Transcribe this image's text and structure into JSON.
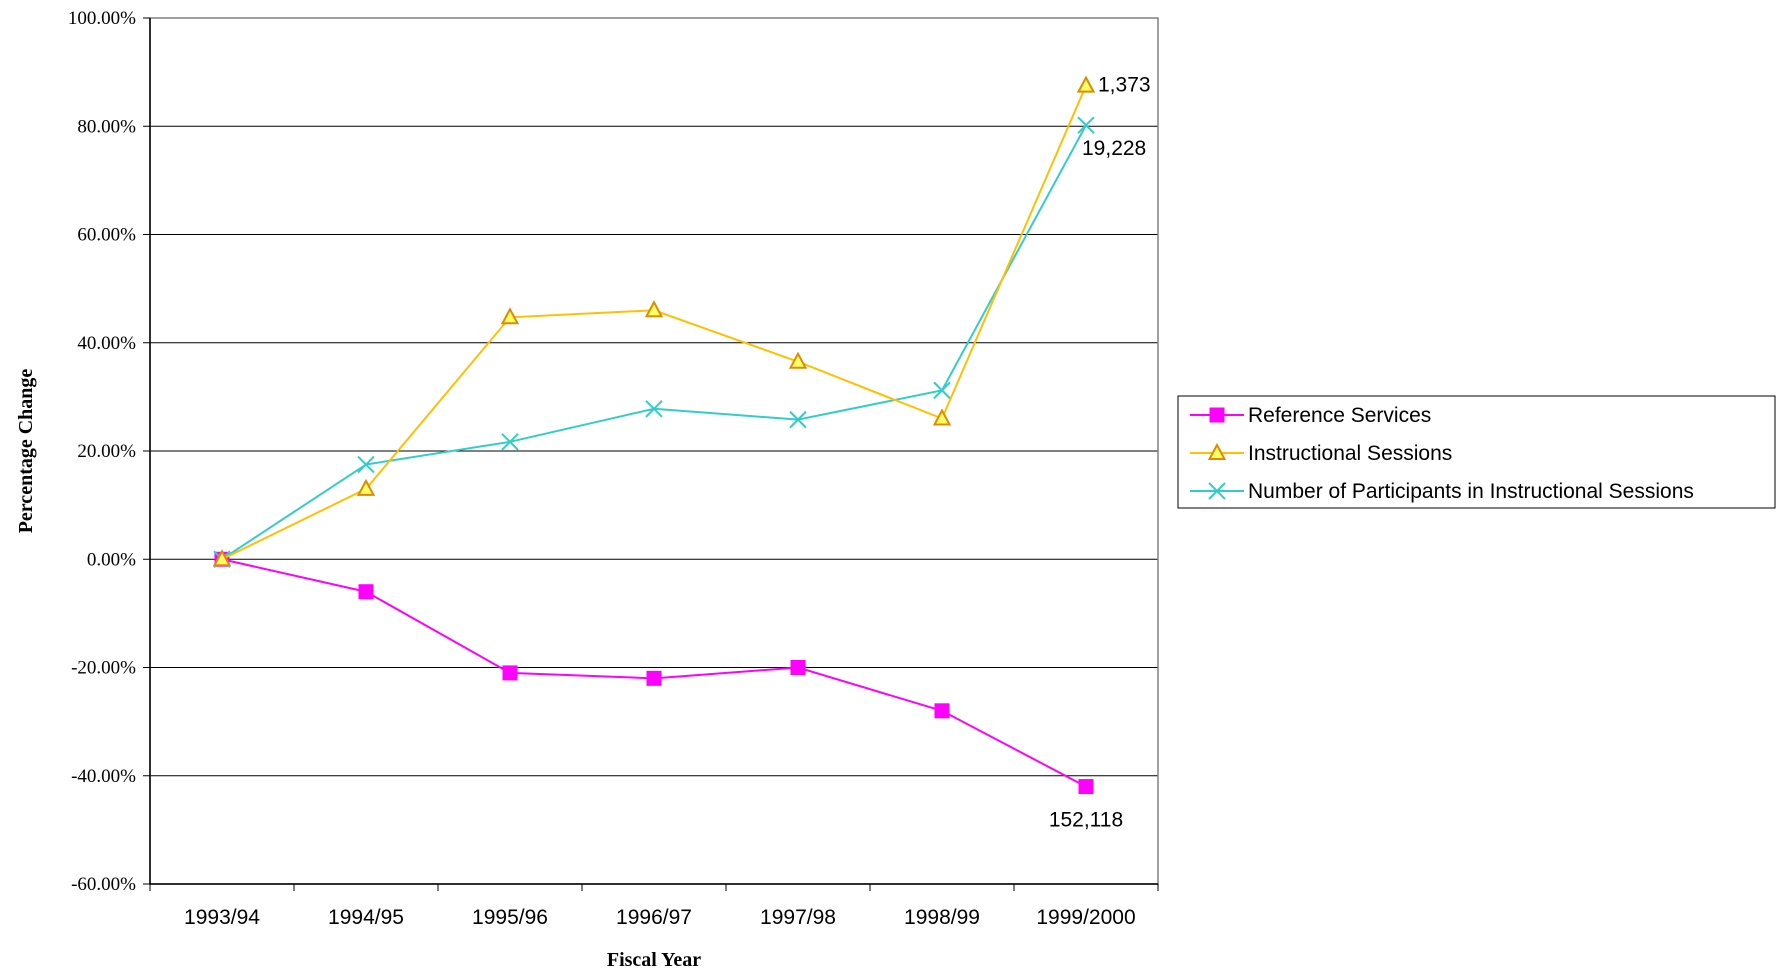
{
  "chart_data": {
    "type": "line",
    "title": "",
    "xlabel": "Fiscal Year",
    "ylabel": "Percentage Change",
    "categories": [
      "1993/94",
      "1994/95",
      "1995/96",
      "1996/97",
      "1997/98",
      "1998/99",
      "1999/2000"
    ],
    "ylim": [
      -60,
      100
    ],
    "yticks": [
      100,
      80,
      60,
      40,
      20,
      0,
      -20,
      -40,
      -60
    ],
    "ytick_labels": [
      "100.00%",
      "80.00%",
      "60.00%",
      "40.00%",
      "20.00%",
      "0.00%",
      "-20.00%",
      "-40.00%",
      "-60.00%"
    ],
    "grid": true,
    "legend_position": "right",
    "series": [
      {
        "name": "Reference Services",
        "color": "#ff00ff",
        "marker": "square",
        "values": [
          0,
          -6,
          -21,
          -22,
          -20,
          -28,
          -42
        ],
        "end_label": "152,118"
      },
      {
        "name": "Instructional Sessions",
        "color": "#ffc000",
        "marker": "triangle",
        "values": [
          0,
          13,
          44.7,
          46,
          36.5,
          26,
          87.5
        ],
        "end_label": "1,373"
      },
      {
        "name": "Number of Participants in Instructional Sessions",
        "color": "#33cccc",
        "marker": "x",
        "values": [
          0,
          17.5,
          21.7,
          27.8,
          25.8,
          31.2,
          80.2
        ],
        "end_label": "19,228"
      }
    ]
  }
}
